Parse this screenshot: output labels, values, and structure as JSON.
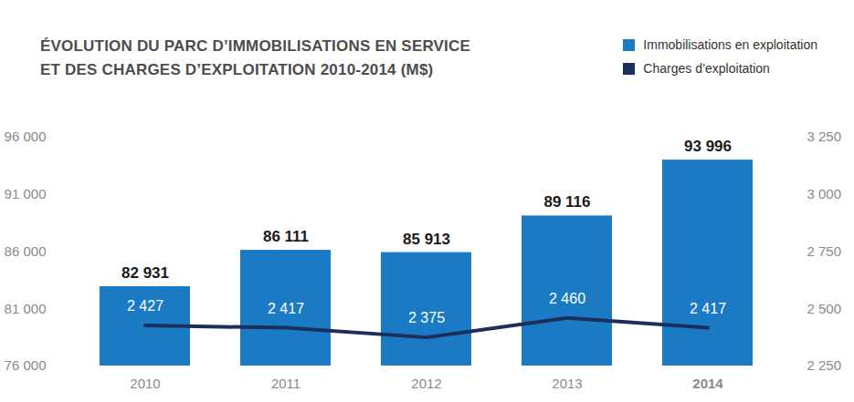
{
  "chart_data": {
    "type": "bar",
    "title": "ÉVOLUTION DU PARC D’IMMOBILISATIONS EN SERVICE\nET DES CHARGES D’EXPLOITATION 2010-2014  (M$)",
    "categories": [
      "2010",
      "2011",
      "2012",
      "2013",
      "2014"
    ],
    "series": [
      {
        "name": "Immobilisations en exploitation",
        "type": "bar",
        "color": "#1b7ac4",
        "values": [
          82931,
          86111,
          85913,
          89116,
          93996
        ],
        "value_labels": [
          "82 931",
          "86 111",
          "85 913",
          "89 116",
          "93 996"
        ]
      },
      {
        "name": "Charges d’exploitation",
        "type": "line",
        "axis": "y2",
        "color": "#1c2f5a",
        "values": [
          2427,
          2417,
          2375,
          2460,
          2417
        ],
        "value_labels": [
          "2 427",
          "2 417",
          "2 375",
          "2 460",
          "2 417"
        ]
      }
    ],
    "ylim": [
      76000,
      96000
    ],
    "yticks": [
      {
        "value": 76000,
        "label": "76 000"
      },
      {
        "value": 81000,
        "label": "81 000"
      },
      {
        "value": 86000,
        "label": "86 000"
      },
      {
        "value": 91000,
        "label": "91 000"
      },
      {
        "value": 96000,
        "label": "96 000"
      }
    ],
    "y2lim": [
      2250,
      3250
    ],
    "y2ticks": [
      {
        "value": 2250,
        "label": "2 250"
      },
      {
        "value": 2500,
        "label": "2 500"
      },
      {
        "value": 2750,
        "label": "2 750"
      },
      {
        "value": 3000,
        "label": "3 000"
      },
      {
        "value": 3250,
        "label": "3 250"
      }
    ],
    "data_labels": true,
    "legend": "top-right",
    "grid": false
  }
}
